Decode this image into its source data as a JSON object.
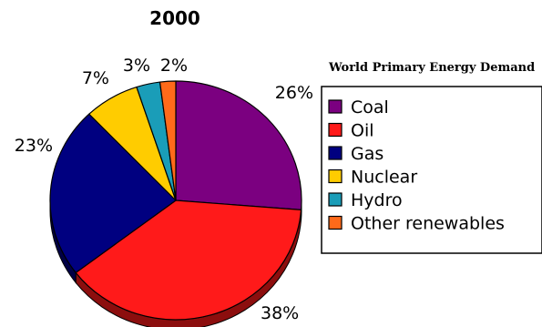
{
  "chart_data": {
    "type": "pie",
    "title": "2000",
    "subtitle": "World Primary Energy Demand",
    "slices": [
      {
        "label": "Coal",
        "value": 26,
        "value_label": "26%",
        "color": "#7B0080"
      },
      {
        "label": "Oil",
        "value": 38,
        "value_label": "38%",
        "color": "#FF1A1A"
      },
      {
        "label": "Gas",
        "value": 23,
        "value_label": "23%",
        "color": "#000080"
      },
      {
        "label": "Nuclear",
        "value": 7,
        "value_label": "7%",
        "color": "#FFCC00"
      },
      {
        "label": "Hydro",
        "value": 3,
        "value_label": "3%",
        "color": "#1A9DB8"
      },
      {
        "label": "Other renewables",
        "value": 2,
        "value_label": "2%",
        "color": "#FF6A1A"
      }
    ],
    "legend_position": "right"
  }
}
